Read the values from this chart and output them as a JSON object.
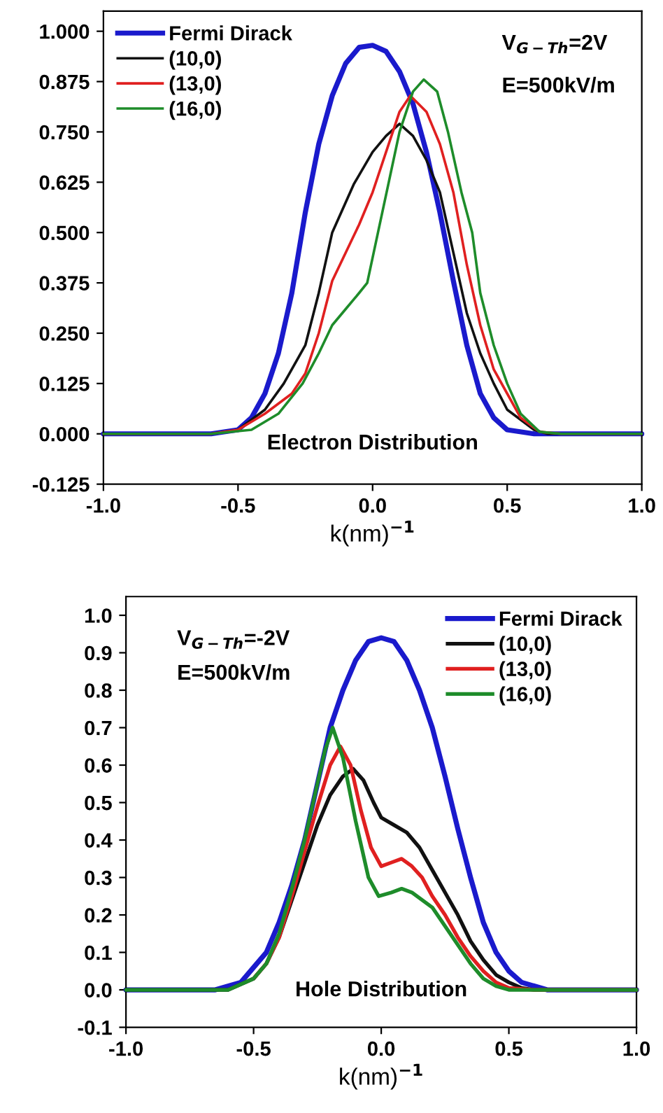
{
  "chart_data": [
    {
      "type": "line",
      "xlabel": "k(nm)$^{−1}$",
      "legend": "top left",
      "annotations": [
        "V$_{G−Th}$=2V",
        "E=500kV/m",
        "Electron Distribution"
      ],
      "xlim": [
        -1.0,
        1.0
      ],
      "ylim": [
        -0.125,
        1.05
      ],
      "xticks": [
        {
          "value": -1.0,
          "label": "-1.0"
        },
        {
          "value": -0.5,
          "label": "-0.5"
        },
        {
          "value": 0,
          "label": "0.0"
        },
        {
          "value": 0.5,
          "label": "0.5"
        },
        {
          "value": 1.0,
          "label": "1.0"
        }
      ],
      "yticks": [
        {
          "value": -0.125,
          "label": "-0.125"
        },
        {
          "value": 0,
          "label": "0.000"
        },
        {
          "value": 0.125,
          "label": "0.125"
        },
        {
          "value": 0.25,
          "label": "0.250"
        },
        {
          "value": 0.375,
          "label": "0.375"
        },
        {
          "value": 0.5,
          "label": "0.500"
        },
        {
          "value": 0.625,
          "label": "0.625"
        },
        {
          "value": 0.75,
          "label": "0.750"
        },
        {
          "value": 0.875,
          "label": "0.875"
        },
        {
          "value": 1.0,
          "label": "1.000"
        }
      ],
      "series": [
        {
          "name": "Fermi Dirack",
          "color": "#1a1acc",
          "x": [
            -1,
            -0.6,
            -0.5,
            -0.45,
            -0.4,
            -0.35,
            -0.3,
            -0.25,
            -0.2,
            -0.15,
            -0.1,
            -0.05,
            0,
            0.05,
            0.1,
            0.15,
            0.2,
            0.25,
            0.3,
            0.35,
            0.4,
            0.45,
            0.5,
            0.6,
            1
          ],
          "values": [
            0,
            0,
            0.01,
            0.04,
            0.1,
            0.2,
            0.35,
            0.55,
            0.72,
            0.84,
            0.92,
            0.96,
            0.965,
            0.95,
            0.9,
            0.82,
            0.7,
            0.55,
            0.38,
            0.22,
            0.1,
            0.04,
            0.01,
            0,
            0
          ]
        },
        {
          "name": "(10,0)",
          "color": "#111111",
          "x": [
            -1,
            -0.6,
            -0.5,
            -0.4,
            -0.33,
            -0.25,
            -0.2,
            -0.15,
            -0.07,
            0,
            0.05,
            0.1,
            0.15,
            0.2,
            0.25,
            0.3,
            0.35,
            0.4,
            0.45,
            0.5,
            0.6,
            0.65,
            1
          ],
          "values": [
            0,
            0,
            0.01,
            0.06,
            0.125,
            0.22,
            0.35,
            0.5,
            0.62,
            0.7,
            0.74,
            0.77,
            0.74,
            0.68,
            0.6,
            0.45,
            0.3,
            0.2,
            0.125,
            0.06,
            0.01,
            0,
            0
          ]
        },
        {
          "name": "(13,0)",
          "color": "#e02020",
          "x": [
            -1,
            -0.6,
            -0.5,
            -0.4,
            -0.3,
            -0.25,
            -0.2,
            -0.15,
            -0.1,
            -0.05,
            0,
            0.05,
            0.1,
            0.14,
            0.2,
            0.25,
            0.3,
            0.35,
            0.4,
            0.45,
            0.5,
            0.55,
            0.62,
            0.7,
            1
          ],
          "values": [
            0,
            0,
            0.01,
            0.05,
            0.1,
            0.15,
            0.25,
            0.38,
            0.45,
            0.52,
            0.6,
            0.7,
            0.8,
            0.84,
            0.8,
            0.72,
            0.6,
            0.42,
            0.27,
            0.16,
            0.1,
            0.04,
            0.005,
            0,
            0
          ]
        },
        {
          "name": "(16,0)",
          "color": "#1e8c2a",
          "x": [
            -1,
            -0.6,
            -0.45,
            -0.35,
            -0.26,
            -0.2,
            -0.15,
            -0.1,
            -0.05,
            -0.02,
            0.02,
            0.06,
            0.1,
            0.15,
            0.19,
            0.24,
            0.28,
            0.33,
            0.37,
            0.4,
            0.45,
            0.5,
            0.55,
            0.62,
            0.7,
            1
          ],
          "values": [
            0,
            0,
            0.01,
            0.05,
            0.125,
            0.2,
            0.27,
            0.31,
            0.35,
            0.375,
            0.5,
            0.625,
            0.75,
            0.85,
            0.88,
            0.85,
            0.75,
            0.6,
            0.5,
            0.35,
            0.22,
            0.125,
            0.05,
            0.005,
            0,
            0
          ]
        }
      ]
    },
    {
      "type": "line",
      "xlabel": "k(nm)$^{−1}$",
      "legend": "top right",
      "annotations": [
        "V$_{G−Th}$=-2V",
        "E=500kV/m",
        "Hole Distribution"
      ],
      "xlim": [
        -1.0,
        1.0
      ],
      "ylim": [
        -0.1,
        1.05
      ],
      "xticks": [
        {
          "value": -1.0,
          "label": "-1.0"
        },
        {
          "value": -0.5,
          "label": "-0.5"
        },
        {
          "value": 0,
          "label": "0.0"
        },
        {
          "value": 0.5,
          "label": "0.5"
        },
        {
          "value": 1.0,
          "label": "1.0"
        }
      ],
      "yticks": [
        {
          "value": -0.1,
          "label": "-0.1"
        },
        {
          "value": 0,
          "label": "0.0"
        },
        0.1,
        0.2,
        0.3,
        0.4,
        0.5,
        0.6,
        0.7,
        0.8,
        0.9,
        {
          "value": 1.0,
          "label": "1.0"
        }
      ],
      "series": [
        {
          "name": "Fermi Dirack",
          "color": "#1a1acc",
          "x": [
            -1,
            -0.65,
            -0.55,
            -0.45,
            -0.4,
            -0.35,
            -0.3,
            -0.25,
            -0.2,
            -0.15,
            -0.1,
            -0.05,
            0,
            0.05,
            0.1,
            0.15,
            0.2,
            0.25,
            0.3,
            0.35,
            0.4,
            0.45,
            0.5,
            0.55,
            0.65,
            1
          ],
          "values": [
            0,
            0,
            0.02,
            0.1,
            0.18,
            0.28,
            0.4,
            0.55,
            0.7,
            0.8,
            0.88,
            0.93,
            0.94,
            0.93,
            0.88,
            0.8,
            0.7,
            0.57,
            0.43,
            0.3,
            0.18,
            0.1,
            0.05,
            0.02,
            0,
            0
          ]
        },
        {
          "name": "(10,0)",
          "color": "#111111",
          "x": [
            -1,
            -0.6,
            -0.5,
            -0.45,
            -0.4,
            -0.35,
            -0.3,
            -0.25,
            -0.2,
            -0.15,
            -0.11,
            -0.07,
            -0.03,
            0,
            0.05,
            0.1,
            0.15,
            0.2,
            0.25,
            0.3,
            0.35,
            0.4,
            0.45,
            0.5,
            0.55,
            0.6,
            1
          ],
          "values": [
            0,
            0,
            0.03,
            0.07,
            0.14,
            0.24,
            0.34,
            0.44,
            0.52,
            0.57,
            0.59,
            0.56,
            0.5,
            0.46,
            0.44,
            0.42,
            0.38,
            0.32,
            0.26,
            0.2,
            0.13,
            0.08,
            0.04,
            0.02,
            0.005,
            0,
            0
          ]
        },
        {
          "name": "(13,0)",
          "color": "#e02020",
          "x": [
            -0.5,
            -0.45,
            -0.4,
            -0.35,
            -0.3,
            -0.25,
            -0.2,
            -0.16,
            -0.12,
            -0.08,
            -0.04,
            0,
            0.04,
            0.08,
            0.12,
            0.16,
            0.2,
            0.25,
            0.3,
            0.35,
            0.4,
            0.45,
            0.5,
            0.6,
            1
          ],
          "values": [
            0.03,
            0.07,
            0.14,
            0.25,
            0.37,
            0.49,
            0.6,
            0.65,
            0.6,
            0.48,
            0.38,
            0.33,
            0.34,
            0.35,
            0.33,
            0.3,
            0.25,
            0.2,
            0.14,
            0.09,
            0.05,
            0.02,
            0.005,
            0,
            0
          ]
        },
        {
          "name": "(16,0)",
          "color": "#1e8c2a",
          "x": [
            -1,
            -0.6,
            -0.5,
            -0.45,
            -0.4,
            -0.35,
            -0.3,
            -0.25,
            -0.22,
            -0.19,
            -0.15,
            -0.1,
            -0.05,
            -0.01,
            0.04,
            0.08,
            0.12,
            0.16,
            0.2,
            0.25,
            0.3,
            0.35,
            0.4,
            0.45,
            0.5,
            1
          ],
          "values": [
            0,
            0,
            0.03,
            0.07,
            0.15,
            0.27,
            0.4,
            0.55,
            0.64,
            0.7,
            0.62,
            0.45,
            0.3,
            0.25,
            0.26,
            0.27,
            0.26,
            0.24,
            0.22,
            0.17,
            0.12,
            0.07,
            0.03,
            0.01,
            0,
            0
          ]
        }
      ]
    }
  ]
}
